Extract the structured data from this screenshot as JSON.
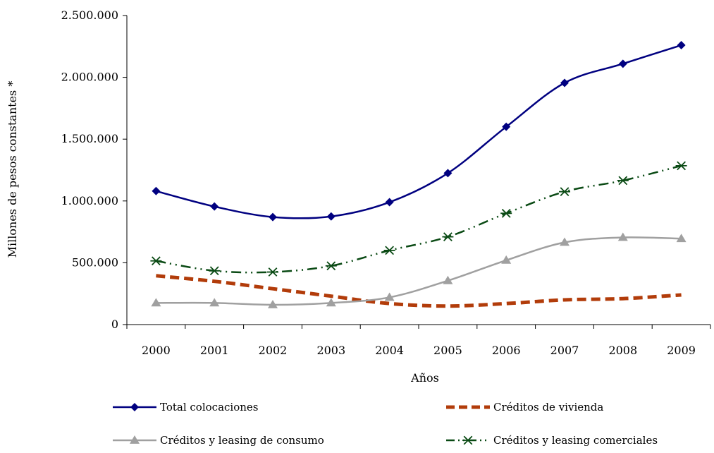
{
  "chart_data": {
    "type": "line",
    "title": "",
    "xlabel": "Años",
    "ylabel": "Millones de pesos constantes *",
    "categories": [
      "2000",
      "2001",
      "2002",
      "2003",
      "2004",
      "2005",
      "2006",
      "2007",
      "2008",
      "2009"
    ],
    "ylim": [
      0,
      2500000
    ],
    "yticks": [
      0,
      500000,
      1000000,
      1500000,
      2000000,
      2500000
    ],
    "ytick_labels": [
      "0",
      "500.000",
      "1.000.000",
      "1.500.000",
      "2.000.000",
      "2.500.000"
    ],
    "grid": false,
    "legend_position": "bottom",
    "series": [
      {
        "name": "Total colocaciones",
        "color": "#000080",
        "marker": "diamond",
        "line": "solid",
        "values": [
          1080000,
          955000,
          870000,
          875000,
          990000,
          1225000,
          1600000,
          1955000,
          2110000,
          2260000
        ]
      },
      {
        "name": "Créditos de vivienda",
        "color": "#b23c0a",
        "marker": "none",
        "line": "dashed",
        "values": [
          395000,
          350000,
          290000,
          230000,
          170000,
          150000,
          170000,
          200000,
          210000,
          240000
        ]
      },
      {
        "name": "Créditos y leasing de consumo",
        "color": "#a0a0a0",
        "marker": "triangle",
        "line": "solid",
        "values": [
          175000,
          175000,
          160000,
          175000,
          220000,
          355000,
          520000,
          665000,
          705000,
          695000
        ]
      },
      {
        "name": "Créditos y leasing comerciales",
        "color": "#0a4a14",
        "marker": "star",
        "line": "dashdot",
        "values": [
          515000,
          435000,
          425000,
          475000,
          600000,
          710000,
          900000,
          1075000,
          1165000,
          1285000
        ]
      }
    ]
  }
}
